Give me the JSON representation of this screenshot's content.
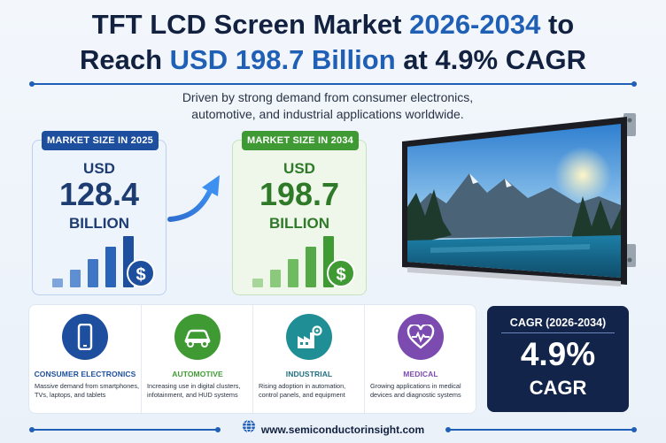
{
  "title": {
    "part1": "TFT LCD Screen Market ",
    "part2": "2026-2034",
    "part3": " to",
    "part4": "Reach ",
    "part5": "USD 198.7 Billion",
    "part6": " at 4.9% CAGR"
  },
  "subtitle": {
    "line1": "Driven by strong demand from consumer electronics,",
    "line2": "automotive, and industrial applications worldwide."
  },
  "market_2025": {
    "label": "MARKET SIZE IN 2025",
    "currency": "USD",
    "value": "128.4",
    "unit": "BILLION",
    "coin_symbol": "$"
  },
  "market_2034": {
    "label": "MARKET SIZE IN 2034",
    "currency": "USD",
    "value": "198.7",
    "unit": "BILLION",
    "coin_symbol": "$"
  },
  "applications": [
    {
      "icon": "smartphone-icon",
      "title": "CONSUMER ELECTRONICS",
      "line1": "Massive demand from smartphones,",
      "line2": "TVs, laptops, and tablets",
      "color": "#1d4f9e"
    },
    {
      "icon": "car-icon",
      "title": "AUTOMOTIVE",
      "line1": "Increasing use in digital clusters,",
      "line2": "infotainment, and HUD systems",
      "color": "#3f9a34"
    },
    {
      "icon": "factory-gear-icon",
      "title": "INDUSTRIAL",
      "line1": "Rising adoption in automation,",
      "line2": "control panels, and equipment",
      "color": "#1f8f95"
    },
    {
      "icon": "heart-pulse-icon",
      "title": "MEDICAL",
      "line1": "Growing applications in medical",
      "line2": "devices and diagnostic systems",
      "color": "#7b4bb0"
    }
  ],
  "cagr": {
    "label": "CAGR (2026-2034)",
    "value": "4.9%",
    "unit": "CAGR"
  },
  "footer": {
    "icon": "globe-icon",
    "url": "www.semiconductorinsight.com"
  },
  "colors": {
    "navy": "#12213f",
    "accent_blue": "#1f5fb5",
    "green": "#3f9a34"
  }
}
